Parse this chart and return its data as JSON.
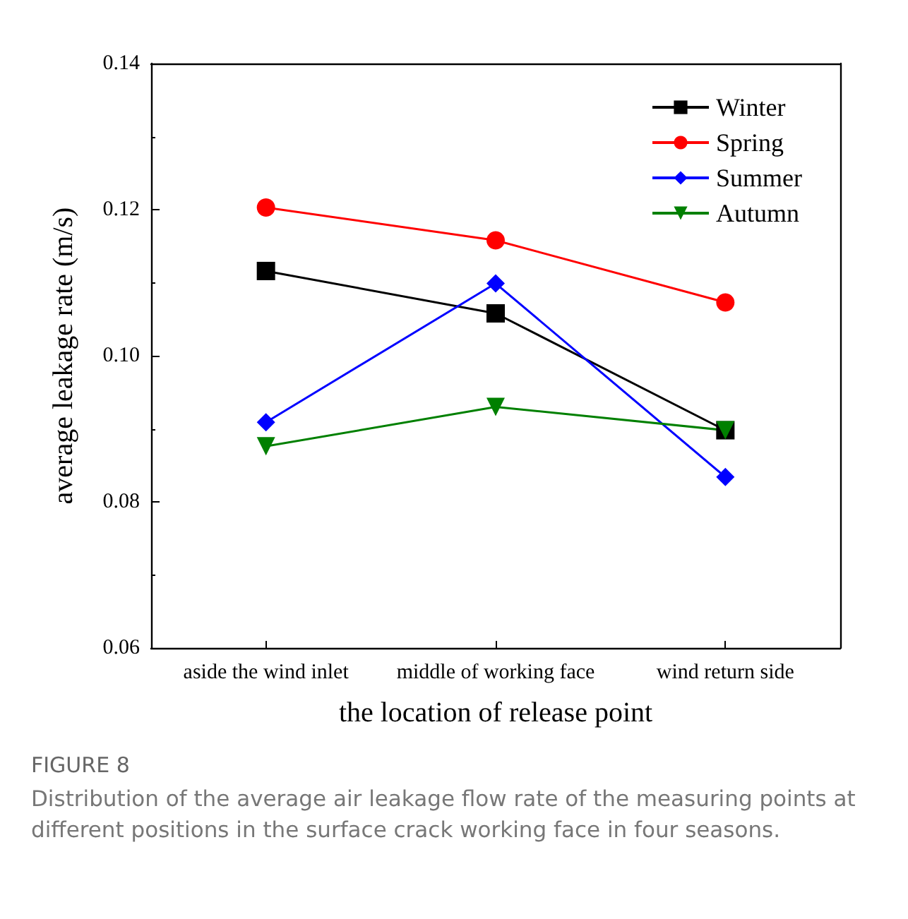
{
  "chart_data": {
    "type": "line",
    "xlabel": "the location of release point",
    "ylabel": "average leakage rate (m/s)",
    "categories": [
      "aside the wind inlet",
      "middle of working face",
      "wind return side"
    ],
    "series": [
      {
        "name": "Winter",
        "color": "#000000",
        "marker": "square",
        "values": [
          0.1116,
          0.1058,
          0.0898
        ]
      },
      {
        "name": "Spring",
        "color": "#ff0000",
        "marker": "circle",
        "values": [
          0.1203,
          0.1158,
          0.1073
        ]
      },
      {
        "name": "Summer",
        "color": "#0000ff",
        "marker": "diamond",
        "values": [
          0.0909,
          0.1099,
          0.0834
        ]
      },
      {
        "name": "Autumn",
        "color": "#008000",
        "marker": "triangle-down",
        "values": [
          0.0876,
          0.093,
          0.0898
        ]
      }
    ],
    "ylim": [
      0.06,
      0.14
    ],
    "yticks": [
      {
        "value": 0.06,
        "label": "0.06"
      },
      {
        "value": 0.08,
        "label": "0.08"
      },
      {
        "value": 0.1,
        "label": "0.10"
      },
      {
        "value": 0.12,
        "label": "0.12"
      },
      {
        "value": 0.14,
        "label": "0.14"
      }
    ],
    "grid": false,
    "legend": "top right",
    "line_style": "solid",
    "annotations": [
      "FIGURE 8",
      "Distribution of the average air leakage flow rate of the measuring points at different positions in the surface crack working face in four seasons."
    ]
  }
}
